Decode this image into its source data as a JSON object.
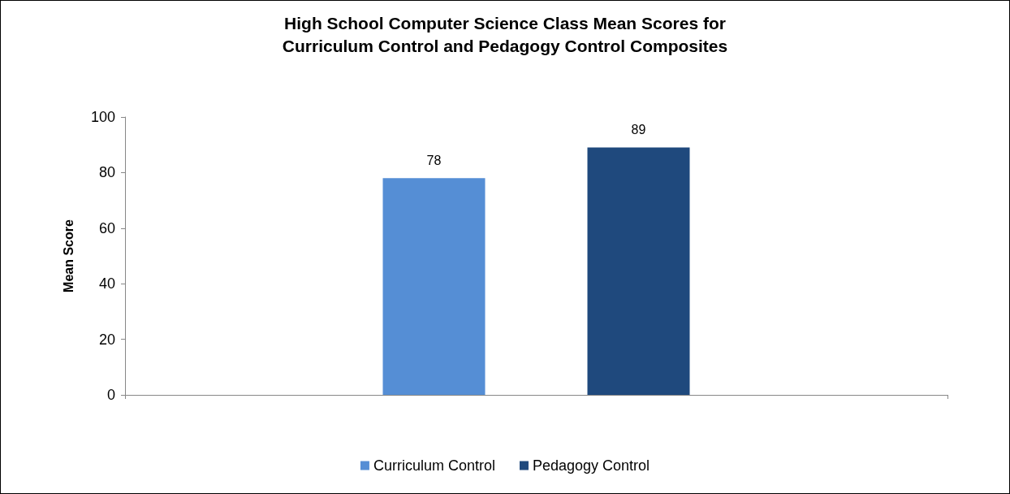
{
  "chart_data": {
    "type": "bar",
    "title": "High School Computer Science Class Mean Scores for\nCurriculum Control and Pedagogy Control Composites",
    "ylabel": "Mean Score",
    "categories": [
      null
    ],
    "series": [
      {
        "name": "Curriculum Control",
        "color": "#558ed5",
        "values": [
          78
        ]
      },
      {
        "name": "Pedagogy Control",
        "color": "#1f497d",
        "values": [
          89
        ]
      }
    ],
    "ylim": [
      0,
      100
    ],
    "yticks": [
      0,
      20,
      40,
      60,
      80,
      100
    ],
    "grid": false,
    "legend": "bottom",
    "data_labels": true
  }
}
